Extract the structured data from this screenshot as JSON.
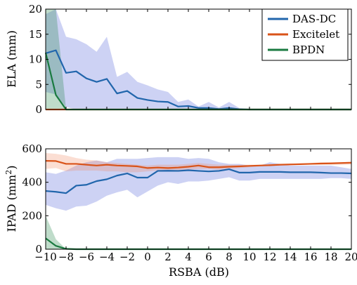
{
  "chart_data": [
    {
      "type": "line",
      "xlabel": "",
      "ylabel": "ELA (mm)",
      "xlim": [
        -10,
        20
      ],
      "ylim": [
        0,
        20
      ],
      "yticks": [
        0,
        5,
        10,
        15,
        20
      ],
      "grid": false,
      "legend_position": "top-right",
      "bands": [
        {
          "series": "DAS-DC",
          "color": "#4a5fd8",
          "x": [
            -10,
            -9,
            -8,
            -7,
            -6,
            -5,
            -4,
            -3,
            -2,
            -1,
            0,
            1,
            2,
            3,
            4,
            5,
            6,
            7,
            8,
            9,
            10,
            11,
            12,
            13,
            14,
            15,
            16,
            17,
            18,
            19,
            20
          ],
          "upper": [
            19.0,
            20.0,
            14.5,
            14.0,
            13.0,
            11.5,
            14.5,
            6.5,
            7.5,
            5.5,
            4.8,
            4.0,
            3.5,
            1.5,
            2.0,
            0.6,
            1.5,
            0.4,
            1.5,
            0.3,
            0.1,
            0,
            0,
            0,
            0,
            0,
            0,
            0,
            0,
            0,
            0
          ],
          "lower": [
            3.5,
            3.0,
            0.5,
            0,
            0,
            0,
            0,
            0,
            0,
            0,
            0,
            0,
            0,
            0,
            0,
            0,
            0,
            0,
            0,
            0,
            0,
            0,
            0,
            0,
            0,
            0,
            0,
            0,
            0,
            0,
            0
          ]
        },
        {
          "series": "BPDN",
          "color": "#1a8040",
          "x": [
            -10,
            -9,
            -8
          ],
          "upper": [
            20,
            20,
            0
          ],
          "lower": [
            0,
            0,
            0
          ]
        }
      ],
      "series": [
        {
          "name": "DAS-DC",
          "color": "#2166ac",
          "x": [
            -10,
            -9,
            -8,
            -7,
            -6,
            -5,
            -4,
            -3,
            -2,
            -1,
            0,
            1,
            2,
            3,
            4,
            5,
            6,
            7,
            8,
            9,
            10,
            11,
            12,
            13,
            14,
            15,
            16,
            17,
            18,
            19,
            20
          ],
          "y": [
            11.2,
            11.8,
            7.3,
            7.6,
            6.2,
            5.5,
            6.1,
            3.2,
            3.7,
            2.3,
            1.9,
            1.6,
            1.5,
            0.6,
            0.7,
            0.3,
            0.3,
            0.1,
            0.3,
            0.05,
            0,
            0,
            0,
            0,
            0,
            0,
            0,
            0,
            0,
            0,
            0
          ]
        },
        {
          "name": "Excitelet",
          "color": "#d95319",
          "x": [
            -10,
            20
          ],
          "y": [
            0,
            0
          ]
        },
        {
          "name": "BPDN",
          "color": "#1a7a40",
          "x": [
            -10,
            -9,
            -8,
            -7,
            20
          ],
          "y": [
            11.3,
            2.9,
            0,
            0,
            0
          ]
        }
      ]
    },
    {
      "type": "line",
      "xlabel": "RSBA (dB)",
      "ylabel_main": "IPAD (mm",
      "ylabel_sup": "2",
      "ylabel_close": ")",
      "xlim": [
        -10,
        20
      ],
      "ylim": [
        0,
        600
      ],
      "xticks": [
        -10,
        -8,
        -6,
        -4,
        -2,
        0,
        2,
        4,
        6,
        8,
        10,
        12,
        14,
        16,
        18,
        20
      ],
      "xtick_labels": [
        "−10",
        "−8",
        "−6",
        "−4",
        "−2",
        "0",
        "2",
        "4",
        "6",
        "8",
        "10",
        "12",
        "14",
        "16",
        "18",
        "20"
      ],
      "yticks": [
        0,
        200,
        400,
        600
      ],
      "grid": false,
      "bands": [
        {
          "series": "DAS-DC",
          "color": "#4a5fd8",
          "x": [
            -10,
            -9,
            -8,
            -7,
            -6,
            -5,
            -4,
            -3,
            -2,
            -1,
            0,
            1,
            2,
            3,
            4,
            5,
            6,
            7,
            8,
            9,
            10,
            11,
            12,
            13,
            14,
            15,
            16,
            17,
            18,
            19,
            20
          ],
          "upper": [
            460,
            450,
            470,
            500,
            520,
            530,
            520,
            540,
            540,
            540,
            545,
            550,
            550,
            550,
            540,
            545,
            540,
            520,
            510,
            510,
            500,
            500,
            520,
            510,
            500,
            500,
            500,
            500,
            500,
            490,
            480
          ],
          "lower": [
            265,
            245,
            230,
            255,
            260,
            285,
            320,
            340,
            355,
            310,
            345,
            380,
            400,
            390,
            405,
            405,
            410,
            420,
            430,
            410,
            410,
            420,
            420,
            420,
            420,
            420,
            420,
            420,
            425,
            425,
            420
          ]
        },
        {
          "series": "Excitelet",
          "color": "#f08a60",
          "x": [
            -10,
            -9,
            -8,
            -7,
            -6,
            -5,
            -4,
            -3,
            -2,
            -1,
            0,
            1,
            2,
            3,
            4,
            5,
            6,
            7,
            8,
            9,
            10,
            11,
            12,
            13,
            14,
            15,
            16,
            17,
            18,
            19,
            20
          ],
          "upper": [
            575,
            570,
            560,
            545,
            535,
            530,
            520,
            515,
            510,
            505,
            500,
            505,
            505,
            505,
            510,
            515,
            510,
            505,
            505,
            505,
            505,
            505,
            510,
            510,
            510,
            515,
            515,
            520,
            520,
            520,
            520
          ],
          "lower": [
            480,
            485,
            465,
            470,
            470,
            470,
            465,
            465,
            460,
            460,
            465,
            470,
            470,
            470,
            475,
            480,
            480,
            475,
            480,
            485,
            490,
            495,
            500,
            500,
            500,
            505,
            505,
            505,
            505,
            505,
            505
          ]
        },
        {
          "series": "BPDN",
          "color": "#1a8040",
          "x": [
            -10,
            -9,
            -8
          ],
          "upper": [
            200,
            60,
            0
          ],
          "lower": [
            0,
            0,
            0
          ]
        }
      ],
      "series": [
        {
          "name": "DAS-DC",
          "color": "#2166ac",
          "x": [
            -10,
            -9,
            -8,
            -7,
            -6,
            -5,
            -4,
            -3,
            -2,
            -1,
            0,
            1,
            2,
            3,
            4,
            5,
            6,
            7,
            8,
            9,
            10,
            11,
            12,
            13,
            14,
            15,
            16,
            17,
            18,
            19,
            20
          ],
          "y": [
            348,
            343,
            335,
            380,
            385,
            407,
            418,
            440,
            453,
            428,
            428,
            468,
            469,
            468,
            472,
            468,
            465,
            468,
            478,
            458,
            458,
            462,
            462,
            462,
            460,
            460,
            460,
            458,
            455,
            455,
            453
          ]
        },
        {
          "name": "Excitelet",
          "color": "#d95319",
          "x": [
            -10,
            -9,
            -8,
            -7,
            -6,
            -5,
            -4,
            -3,
            -2,
            -1,
            0,
            1,
            2,
            3,
            4,
            5,
            6,
            7,
            8,
            9,
            10,
            11,
            12,
            13,
            14,
            15,
            16,
            17,
            18,
            19,
            20
          ],
          "y": [
            528,
            527,
            510,
            510,
            505,
            500,
            505,
            500,
            498,
            495,
            485,
            488,
            485,
            488,
            493,
            500,
            490,
            490,
            493,
            495,
            498,
            500,
            502,
            505,
            507,
            508,
            510,
            512,
            513,
            515,
            517
          ]
        },
        {
          "name": "BPDN",
          "color": "#1a7a40",
          "x": [
            -10,
            -9,
            -8,
            -7,
            20
          ],
          "y": [
            65,
            20,
            2,
            0,
            0
          ]
        }
      ]
    }
  ],
  "legend": {
    "items": [
      {
        "label": "DAS-DC",
        "color": "#2166ac"
      },
      {
        "label": "Excitelet",
        "color": "#d95319"
      },
      {
        "label": "BPDN",
        "color": "#1a7a40"
      }
    ]
  }
}
